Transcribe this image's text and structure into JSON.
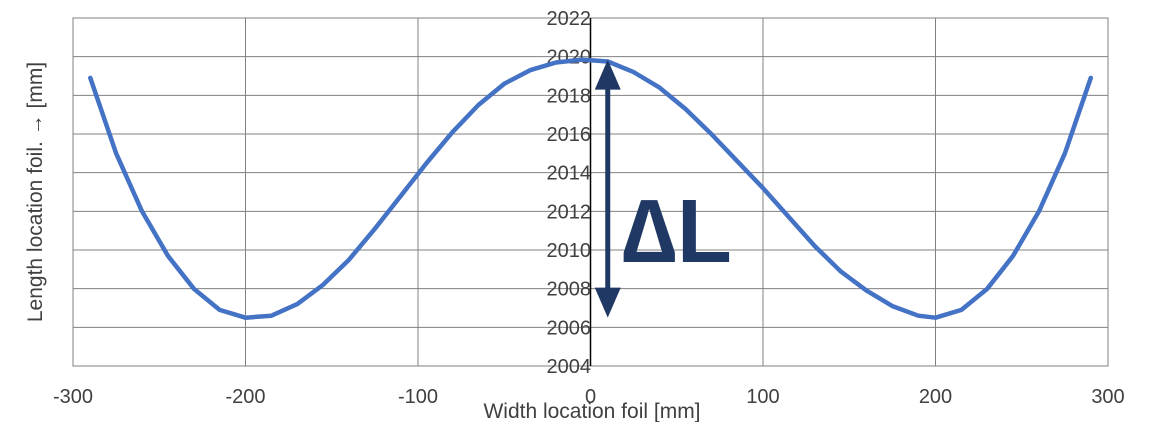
{
  "chart_data": {
    "type": "line",
    "title": "",
    "xlabel": "Width location foil [mm]",
    "ylabel": "Length location foil.  → [mm]",
    "xlim": [
      -300,
      300
    ],
    "ylim": [
      2004,
      2022
    ],
    "xticks": [
      -300,
      -200,
      -100,
      0,
      100,
      200,
      300
    ],
    "yticks": [
      2004,
      2006,
      2008,
      2010,
      2012,
      2014,
      2016,
      2018,
      2020,
      2022
    ],
    "xtick_labels": [
      "-300",
      "-200",
      "-100",
      "0",
      "100",
      "200",
      "300"
    ],
    "ytick_labels": [
      "2004",
      "2006",
      "2008",
      "2010",
      "2012",
      "2014",
      "2016",
      "2018",
      "2020",
      "2022"
    ],
    "grid": true,
    "series": [
      {
        "color": "#4472c4",
        "x": [
          -290,
          -275,
          -260,
          -245,
          -230,
          -215,
          -200,
          -185,
          -170,
          -155,
          -140,
          -125,
          -110,
          -95,
          -80,
          -65,
          -50,
          -35,
          -20,
          -5,
          10,
          25,
          40,
          55,
          70,
          85,
          100,
          115,
          130,
          145,
          160,
          175,
          190,
          200,
          215,
          230,
          245,
          260,
          275,
          290
        ],
        "y": [
          2018.9,
          2015.0,
          2012.0,
          2009.7,
          2008.0,
          2006.9,
          2006.5,
          2006.6,
          2007.2,
          2008.2,
          2009.5,
          2011.1,
          2012.8,
          2014.5,
          2016.1,
          2017.5,
          2018.6,
          2019.3,
          2019.7,
          2019.85,
          2019.75,
          2019.2,
          2018.4,
          2017.3,
          2016.0,
          2014.6,
          2013.2,
          2011.7,
          2010.2,
          2008.9,
          2007.9,
          2007.1,
          2006.6,
          2006.5,
          2006.9,
          2008.0,
          2009.7,
          2012.0,
          2015.0,
          2018.9
        ]
      }
    ],
    "annotation": {
      "label": "∆L",
      "from_y": 2019.85,
      "to_y": 2006.5,
      "x": 10,
      "color": "#1f3864"
    }
  }
}
